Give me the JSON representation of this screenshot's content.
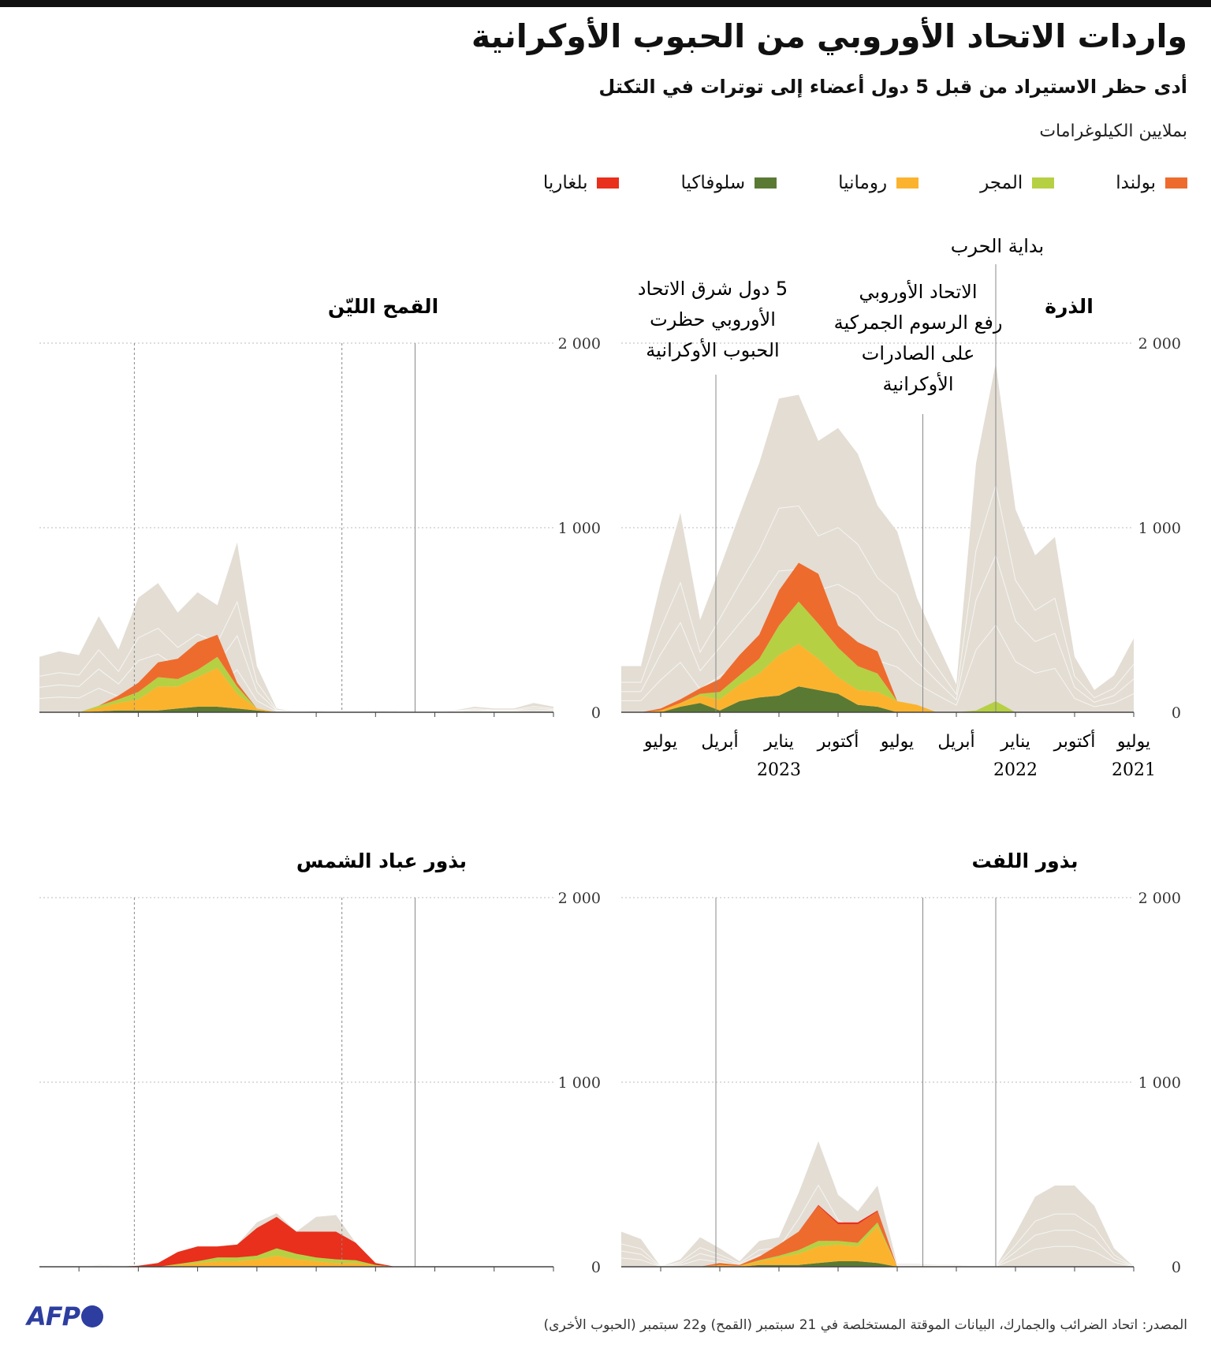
{
  "title": "واردات الاتحاد الأوروبي من الحبوب الأوكرانية",
  "subtitle": "أدى حظر الاستيراد من قبل 5 دول أعضاء إلى توترات في التكتل",
  "unit": "بملايين الكيلوغرامات",
  "legend": [
    {
      "label": "بولندا",
      "color": "#ee6b2e"
    },
    {
      "label": "المجر",
      "color": "#b6d043"
    },
    {
      "label": "رومانيا",
      "color": "#fbb32e"
    },
    {
      "label": "سلوفاكيا",
      "color": "#5a7a34"
    },
    {
      "label": "بلغاريا",
      "color": "#e8301c"
    }
  ],
  "colors": {
    "total": "#e3ddd4",
    "grid": "#bbbbbb",
    "axis": "#444444",
    "event_line": "#888888"
  },
  "annotations": {
    "war_start": "بداية الحرب",
    "tariffs_lifted": "الاتحاد الأوروبي رفع الرسوم الجمركية على الصادرات الأوكرانية",
    "ban": "5 دول شرق الاتحاد الأوروبي حظرت الحبوب الأوكرانية"
  },
  "x_axis_labels": [
    {
      "month": "يوليو",
      "year": "2021",
      "t": 0
    },
    {
      "month": "أكتوبر",
      "year": "",
      "t": 3
    },
    {
      "month": "يناير",
      "year": "2022",
      "t": 6
    },
    {
      "month": "أبريل",
      "year": "",
      "t": 9
    },
    {
      "month": "يوليو",
      "year": "",
      "t": 12
    },
    {
      "month": "أكتوبر",
      "year": "",
      "t": 15
    },
    {
      "month": "يناير",
      "year": "2023",
      "t": 18
    },
    {
      "month": "أبريل",
      "year": "",
      "t": 21
    },
    {
      "month": "يوليو",
      "year": "",
      "t": 24
    }
  ],
  "chart_data": [
    {
      "type": "area",
      "title": "الذرة",
      "x_unit": "months since July 2021",
      "x": [
        0,
        1,
        2,
        3,
        4,
        5,
        6,
        7,
        8,
        9,
        10,
        11,
        12,
        13,
        14,
        15,
        16,
        17,
        18,
        19,
        20,
        21,
        22,
        23,
        24,
        25,
        26
      ],
      "ylim": [
        0,
        2000
      ],
      "yticks": [
        "0",
        "1 000",
        "2 000"
      ],
      "total": [
        400,
        200,
        120,
        300,
        950,
        850,
        1100,
        1890,
        1350,
        150,
        380,
        620,
        980,
        1120,
        1400,
        1540,
        1470,
        1720,
        1700,
        1350,
        1070,
        780,
        500,
        1080,
        700,
        250,
        250
      ],
      "series": [
        {
          "name": "بولندا",
          "values": [
            0,
            0,
            0,
            0,
            0,
            0,
            0,
            0,
            0,
            0,
            0,
            0,
            0,
            120,
            130,
            120,
            270,
            210,
            190,
            130,
            110,
            70,
            30,
            20,
            10,
            0,
            0
          ]
        },
        {
          "name": "المجر",
          "values": [
            0,
            0,
            0,
            0,
            0,
            0,
            0,
            60,
            10,
            0,
            0,
            0,
            0,
            100,
            130,
            160,
            190,
            230,
            160,
            80,
            50,
            40,
            10,
            0,
            0,
            0,
            0
          ]
        },
        {
          "name": "رومانيا",
          "values": [
            0,
            0,
            0,
            0,
            0,
            0,
            0,
            0,
            0,
            0,
            0,
            40,
            60,
            80,
            80,
            90,
            170,
            230,
            220,
            130,
            90,
            60,
            40,
            20,
            10,
            0,
            0
          ]
        },
        {
          "name": "سلوفاكيا",
          "values": [
            0,
            0,
            0,
            0,
            0,
            0,
            0,
            0,
            0,
            0,
            0,
            0,
            0,
            30,
            40,
            100,
            120,
            140,
            90,
            80,
            60,
            10,
            50,
            30,
            0,
            0,
            0
          ]
        },
        {
          "name": "بلغاريا",
          "values": [
            0,
            0,
            0,
            0,
            0,
            0,
            0,
            0,
            0,
            0,
            0,
            0,
            0,
            0,
            0,
            0,
            0,
            0,
            0,
            0,
            0,
            0,
            0,
            0,
            0,
            0,
            0
          ]
        }
      ],
      "events": [
        {
          "t": 7,
          "label": "بداية الحرب"
        },
        {
          "t": 10.7,
          "label": "الاتحاد الأوروبي رفع الرسوم الجمركية على الصادرات الأوكرانية"
        },
        {
          "t": 21.2,
          "label": "5 دول شرق الاتحاد الأوروبي حظرت الحبوب الأوكرانية"
        }
      ]
    },
    {
      "type": "area",
      "title": "القمح الليّن",
      "x_unit": "months since July 2021",
      "x": [
        0,
        1,
        2,
        3,
        4,
        5,
        6,
        7,
        8,
        9,
        10,
        11,
        12,
        13,
        14,
        15,
        16,
        17,
        18,
        19,
        20,
        21,
        22,
        23,
        24,
        25,
        26
      ],
      "ylim": [
        0,
        2000
      ],
      "yticks": [
        "0",
        "1 000",
        "2 000"
      ],
      "total": [
        30,
        50,
        20,
        20,
        30,
        10,
        0,
        0,
        5,
        10,
        0,
        0,
        10,
        0,
        20,
        250,
        920,
        580,
        650,
        540,
        700,
        620,
        340,
        520,
        310,
        330,
        300
      ],
      "series": [
        {
          "name": "بولندا",
          "values": [
            0,
            0,
            0,
            0,
            0,
            0,
            0,
            0,
            0,
            0,
            0,
            0,
            0,
            0,
            0,
            0,
            20,
            120,
            150,
            110,
            80,
            50,
            20,
            0,
            0,
            0,
            0
          ]
        },
        {
          "name": "المجر",
          "values": [
            0,
            0,
            0,
            0,
            0,
            0,
            0,
            0,
            0,
            0,
            0,
            0,
            0,
            0,
            0,
            0,
            40,
            60,
            40,
            40,
            50,
            40,
            20,
            10,
            0,
            0,
            0
          ]
        },
        {
          "name": "رومانيا",
          "values": [
            0,
            0,
            0,
            0,
            0,
            0,
            0,
            0,
            0,
            0,
            0,
            0,
            0,
            0,
            0,
            10,
            80,
            210,
            160,
            120,
            130,
            60,
            40,
            20,
            0,
            0,
            0
          ]
        },
        {
          "name": "سلوفاكيا",
          "values": [
            0,
            0,
            0,
            0,
            0,
            0,
            0,
            0,
            0,
            0,
            0,
            0,
            0,
            0,
            0,
            10,
            20,
            30,
            30,
            20,
            10,
            10,
            10,
            5,
            0,
            0,
            0
          ]
        },
        {
          "name": "بلغاريا",
          "values": [
            0,
            0,
            0,
            0,
            0,
            0,
            0,
            0,
            0,
            0,
            0,
            0,
            0,
            0,
            0,
            0,
            0,
            0,
            0,
            0,
            0,
            0,
            0,
            0,
            0,
            0,
            0
          ]
        }
      ],
      "events": [
        {
          "t": 7
        },
        {
          "t": 10.7
        },
        {
          "t": 21.2
        }
      ]
    },
    {
      "type": "area",
      "title": "بذور اللفت",
      "x_unit": "months since July 2021",
      "x": [
        0,
        1,
        2,
        3,
        4,
        5,
        6,
        7,
        8,
        9,
        10,
        11,
        12,
        13,
        14,
        15,
        16,
        17,
        18,
        19,
        20,
        21,
        22,
        23,
        24,
        25,
        26
      ],
      "ylim": [
        0,
        2000
      ],
      "yticks": [
        "0",
        "1 000",
        "2 000"
      ],
      "total": [
        0,
        100,
        330,
        440,
        440,
        380,
        180,
        0,
        0,
        10,
        10,
        15,
        15,
        440,
        300,
        390,
        680,
        400,
        160,
        140,
        30,
        100,
        160,
        40,
        0,
        150,
        190
      ],
      "series": [
        {
          "name": "بولندا",
          "values": [
            0,
            0,
            0,
            0,
            0,
            0,
            0,
            0,
            0,
            0,
            0,
            0,
            0,
            60,
            100,
            90,
            190,
            100,
            60,
            20,
            5,
            10,
            0,
            0,
            0,
            0,
            0
          ]
        },
        {
          "name": "المجر",
          "values": [
            0,
            0,
            0,
            0,
            0,
            0,
            0,
            0,
            0,
            0,
            0,
            0,
            0,
            20,
            20,
            20,
            30,
            20,
            10,
            5,
            0,
            0,
            0,
            0,
            0,
            0,
            0
          ]
        },
        {
          "name": "رومانيا",
          "values": [
            0,
            0,
            0,
            0,
            0,
            0,
            0,
            0,
            0,
            0,
            0,
            0,
            0,
            200,
            80,
            90,
            90,
            60,
            40,
            20,
            5,
            10,
            0,
            0,
            0,
            0,
            0
          ]
        },
        {
          "name": "سلوفاكيا",
          "values": [
            0,
            0,
            0,
            0,
            0,
            0,
            0,
            0,
            0,
            0,
            0,
            0,
            0,
            20,
            30,
            30,
            20,
            10,
            10,
            10,
            0,
            0,
            0,
            0,
            0,
            0,
            0
          ]
        },
        {
          "name": "بلغاريا",
          "values": [
            0,
            0,
            0,
            0,
            0,
            0,
            0,
            0,
            0,
            0,
            0,
            0,
            0,
            5,
            10,
            10,
            5,
            0,
            0,
            0,
            0,
            0,
            0,
            0,
            0,
            0,
            0
          ]
        }
      ],
      "events": [
        {
          "t": 7
        },
        {
          "t": 10.7
        },
        {
          "t": 21.2
        }
      ]
    },
    {
      "type": "area",
      "title": "بذور عباد الشمس",
      "x_unit": "months since July 2021",
      "x": [
        0,
        1,
        2,
        3,
        4,
        5,
        6,
        7,
        8,
        9,
        10,
        11,
        12,
        13,
        14,
        15,
        16,
        17,
        18,
        19,
        20,
        21,
        22,
        23,
        24,
        25,
        26
      ],
      "ylim": [
        0,
        2000
      ],
      "yticks": [
        "0",
        "1 000",
        "2 000"
      ],
      "total": [
        0,
        0,
        0,
        0,
        0,
        0,
        0,
        0,
        0,
        20,
        130,
        280,
        270,
        190,
        290,
        240,
        120,
        110,
        110,
        80,
        20,
        5,
        5,
        10,
        0,
        0,
        0
      ],
      "series": [
        {
          "name": "بولندا",
          "values": [
            0,
            0,
            0,
            0,
            0,
            0,
            0,
            0,
            0,
            0,
            0,
            0,
            0,
            0,
            0,
            0,
            0,
            0,
            0,
            0,
            0,
            0,
            0,
            0,
            0,
            0,
            0
          ]
        },
        {
          "name": "المجر",
          "values": [
            0,
            0,
            0,
            0,
            0,
            0,
            0,
            0,
            0,
            5,
            15,
            20,
            20,
            30,
            40,
            20,
            20,
            20,
            10,
            5,
            0,
            0,
            0,
            0,
            0,
            0,
            0
          ]
        },
        {
          "name": "رومانيا",
          "values": [
            0,
            0,
            0,
            0,
            0,
            0,
            0,
            0,
            0,
            5,
            20,
            20,
            30,
            40,
            60,
            40,
            30,
            30,
            20,
            10,
            0,
            0,
            0,
            0,
            0,
            0,
            0
          ]
        },
        {
          "name": "سلوفاكيا",
          "values": [
            0,
            0,
            0,
            0,
            0,
            0,
            0,
            0,
            0,
            0,
            0,
            0,
            0,
            0,
            0,
            0,
            0,
            0,
            0,
            0,
            0,
            0,
            0,
            0,
            0,
            0,
            0
          ]
        },
        {
          "name": "بلغاريا",
          "values": [
            0,
            0,
            0,
            0,
            0,
            0,
            0,
            0,
            0,
            10,
            95,
            150,
            140,
            120,
            170,
            150,
            70,
            60,
            80,
            65,
            20,
            5,
            0,
            0,
            0,
            0,
            0
          ]
        }
      ],
      "events": [
        {
          "t": 7
        },
        {
          "t": 10.7
        },
        {
          "t": 21.2
        }
      ]
    }
  ],
  "source": "المصدر: اتحاد الضرائب والجمارك، البيانات الموقتة المستخلصة في 21 سبتمبر (القمح) و22 سبتمبر (الحبوب الأخرى)",
  "logo": "AFP"
}
